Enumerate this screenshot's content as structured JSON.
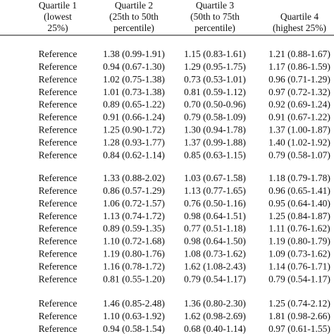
{
  "table": {
    "header": [
      [
        "Quartile 1",
        "(lowest",
        "25%)"
      ],
      [
        "Quartile 2",
        "(25th to 50th",
        "percentile)"
      ],
      [
        "Quartile 3",
        "(50th to 75th",
        "percentile)"
      ],
      [
        "Quartile 4",
        "(highest 25%)"
      ]
    ],
    "groups": [
      [
        [
          "Reference",
          "1.38 (0.99-1.91)",
          "1.15 (0.83-1.61)",
          "1.21 (0.88-1.67)"
        ],
        [
          "Reference",
          "0.94 (0.67-1.30)",
          "1.29 (0.95-1.75)",
          "1.17 (0.86-1.59)"
        ],
        [
          "Reference",
          "1.02 (0.75-1.38)",
          "0.73 (0.53-1.01)",
          "0.96 (0.71-1.29)"
        ],
        [
          "Reference",
          "1.01 (0.73-1.38)",
          "0.81 (0.59-1.12)",
          "0.97 (0.72-1.32)"
        ],
        [
          "Reference",
          "0.89 (0.65-1.22)",
          "0.70 (0.50-0.96)",
          "0.92 (0.69-1.24)"
        ],
        [
          "Reference",
          "0.91 (0.66-1.24)",
          "0.79 (0.58-1.09)",
          "0.91 (0.67-1.22)"
        ],
        [
          "Reference",
          "1.25 (0.90-1.72)",
          "1.30 (0.94-1.78)",
          "1.37 (1.00-1.87)"
        ],
        [
          "Reference",
          "1.28 (0.93-1.77)",
          "1.37 (0.99-1.88)",
          "1.40 (1.02-1.92)"
        ],
        [
          "Reference",
          "0.84 (0.62-1.14)",
          "0.85 (0.63-1.15)",
          "0.79 (0.58-1.07)"
        ]
      ],
      [
        [
          "Reference",
          "1.33 (0.88-2.02)",
          "1.03 (0.67-1.58)",
          "1.18 (0.79-1.78)"
        ],
        [
          "Reference",
          "0.86 (0.57-1.29)",
          "1.13 (0.77-1.65)",
          "0.96 (0.65-1.41)"
        ],
        [
          "Reference",
          "1.06 (0.72-1.57)",
          "0.76 (0.50-1.16)",
          "0.95 (0.64-1.40)"
        ],
        [
          "Reference",
          "1.13 (0.74-1.72)",
          "0.98 (0.64-1.51)",
          "1.25 (0.84-1.87)"
        ],
        [
          "Reference",
          "0.89 (0.59-1.35)",
          "0.77 (0.51-1.18)",
          "1.11 (0.76-1.62)"
        ],
        [
          "Reference",
          "1.10 (0.72-1.68)",
          "0.98 (0.64-1.50)",
          "1.19 (0.80-1.79)"
        ],
        [
          "Reference",
          "1.19 (0.80-1.76)",
          "1.08 (0.73-1.62)",
          "1.09 (0.73-1.62)"
        ],
        [
          "Reference",
          "1.16 (0.78-1.72)",
          "1.62 (1.08-2.43)",
          "1.14 (0.76-1.71)"
        ],
        [
          "Reference",
          "0.81 (0.55-1.20)",
          "0.79 (0.54-1.17)",
          "0.79 (0.54-1.17)"
        ]
      ],
      [
        [
          "Reference",
          "1.46 (0.85-2.48)",
          "1.36 (0.80-2.30)",
          "1.25 (0.74-2.12)"
        ],
        [
          "Reference",
          "1.10 (0.63-1.92)",
          "1.62 (0.98-2.69)",
          "1.81 (0.98-2.66)"
        ],
        [
          "Reference",
          "0.94 (0.58-1.54)",
          "0.68 (0.40-1.14)",
          "0.97 (0.61-1.55)"
        ]
      ]
    ]
  }
}
